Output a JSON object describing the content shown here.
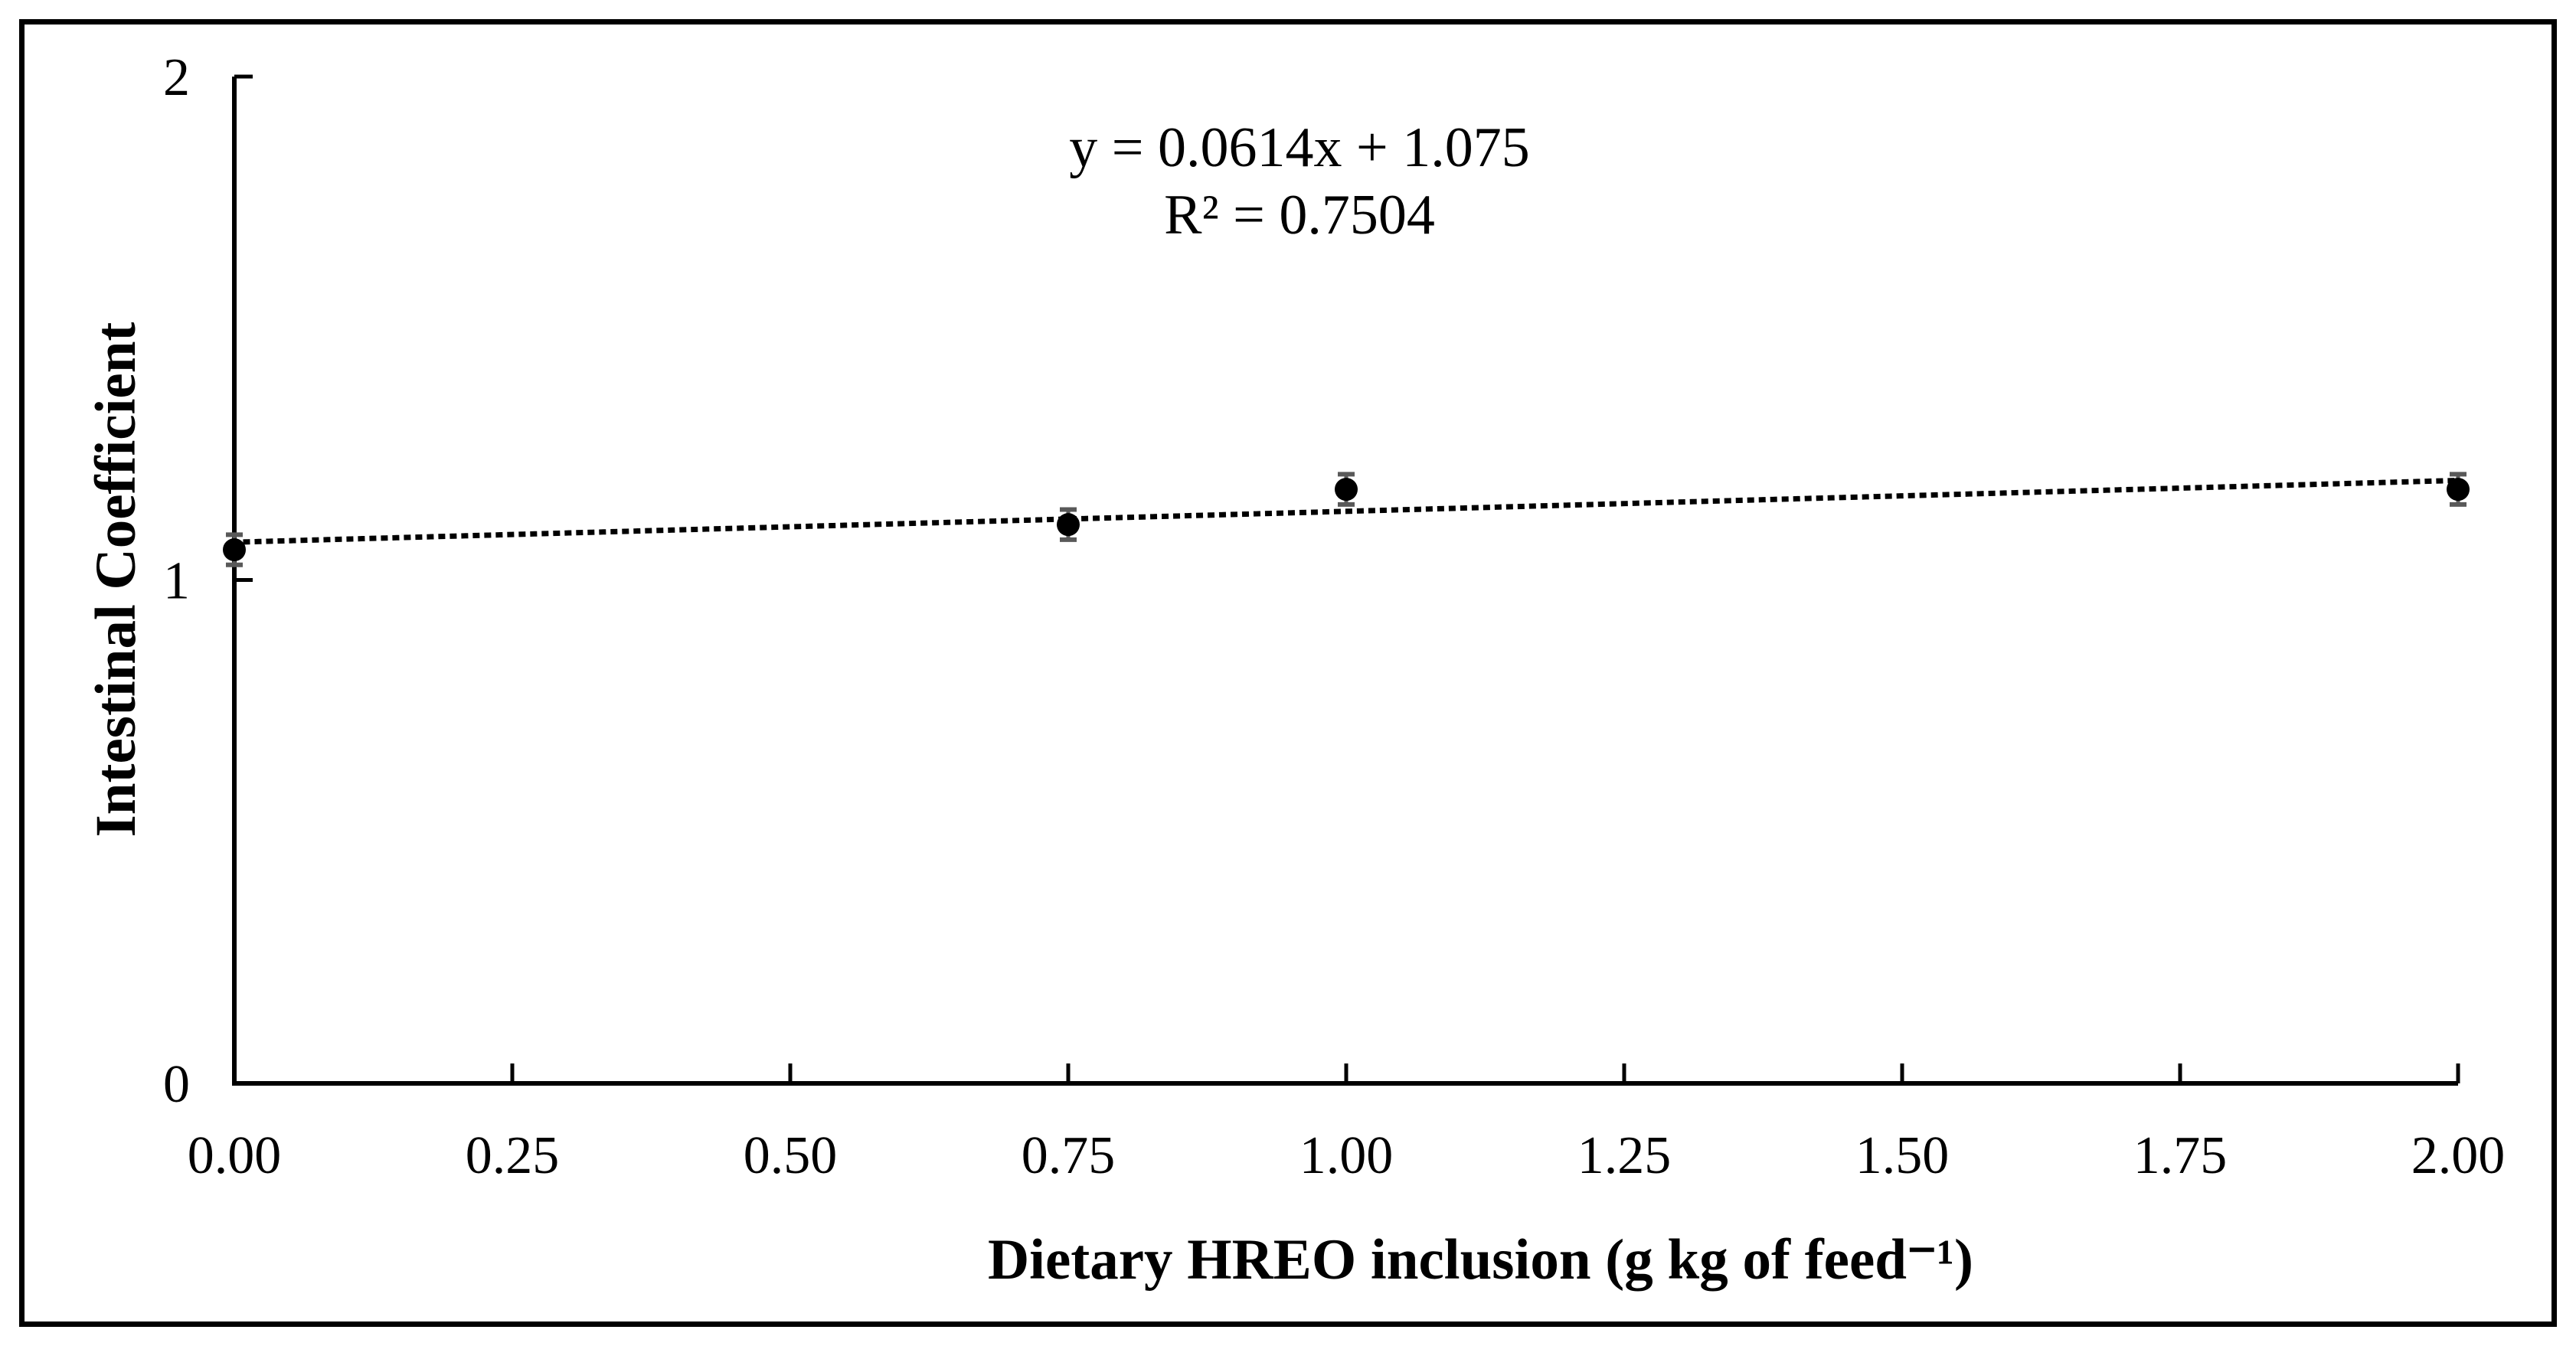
{
  "chart_data": {
    "type": "scatter",
    "title": "",
    "xlabel": "Dietary HREO inclusion (g kg of feed⁻¹)",
    "ylabel": "Intestinal Coefficient",
    "xlim": [
      0,
      2
    ],
    "ylim": [
      0,
      2
    ],
    "x_ticks": [
      "0.00",
      "0.25",
      "0.50",
      "0.75",
      "1.00",
      "1.25",
      "1.50",
      "1.75",
      "2.00"
    ],
    "y_ticks": [
      "0",
      "1",
      "2"
    ],
    "grid": false,
    "legend": "none",
    "points": [
      {
        "x": 0.0,
        "y": 1.06,
        "error": 0.03
      },
      {
        "x": 0.75,
        "y": 1.11,
        "error": 0.03
      },
      {
        "x": 1.0,
        "y": 1.18,
        "error": 0.03
      },
      {
        "x": 2.0,
        "y": 1.18,
        "error": 0.03
      }
    ],
    "trendline": {
      "type": "linear",
      "style": "dotted",
      "slope": 0.0614,
      "intercept": 1.075,
      "x_start": 0,
      "x_end": 2
    },
    "annotation": {
      "equation": "y = 0.0614x + 1.075",
      "r_squared": "R² = 0.7504"
    },
    "colors": {
      "marker": "#000000",
      "trendline": "#000000",
      "error_bar": "#595959",
      "axis": "#000000",
      "text": "#000000",
      "border": "#000000",
      "background": "#ffffff"
    }
  }
}
